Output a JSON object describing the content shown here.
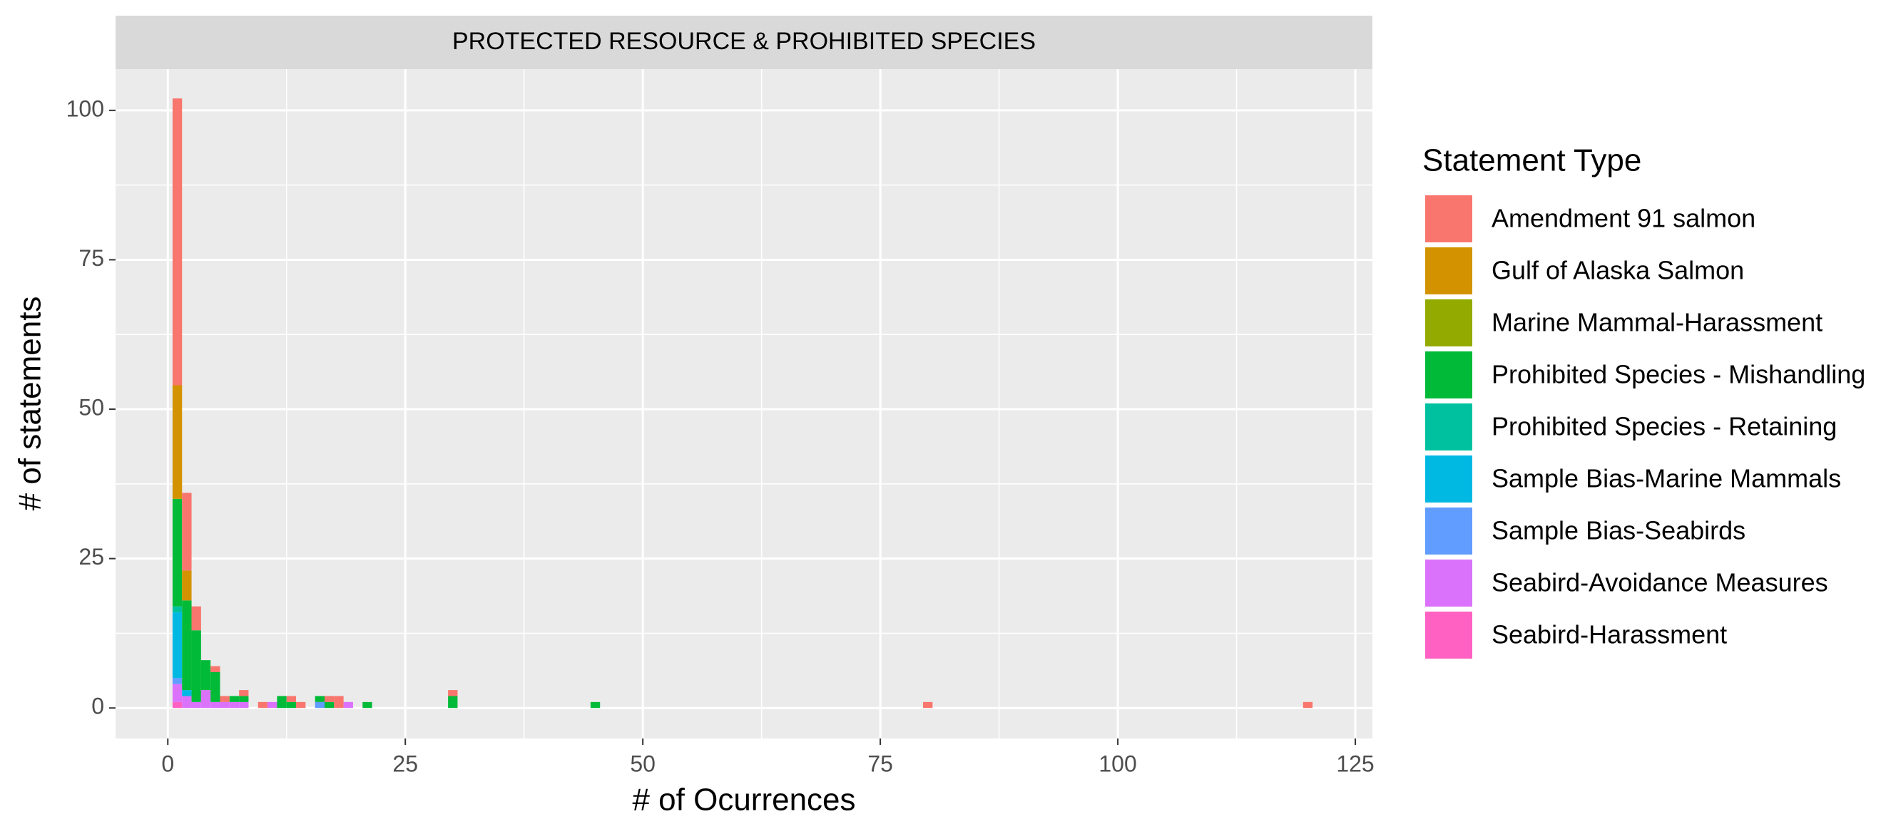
{
  "chart_data": {
    "type": "stacked_bar",
    "title": "PROTECTED RESOURCE & PROHIBITED SPECIES",
    "x_label": "# of Ocurrences",
    "y_label": "# of statements",
    "legend_title": "Statement Type",
    "legend_position": "right",
    "grid": true,
    "x": [
      1,
      2,
      3,
      4,
      5,
      6,
      7,
      8,
      10,
      11,
      12,
      13,
      14,
      16,
      17,
      18,
      19,
      21,
      30,
      45,
      80,
      120
    ],
    "xlim": [
      -5.5,
      126.8
    ],
    "xticks": [
      0,
      25,
      50,
      75,
      100,
      125
    ],
    "ylim": [
      -5.1,
      106.9
    ],
    "yticks": [
      0,
      25,
      50,
      75,
      100
    ],
    "series": [
      {
        "name": "Amendment 91 salmon",
        "color": "#F8766D",
        "values": [
          48,
          13,
          4,
          0,
          1,
          1,
          0,
          1,
          1,
          0,
          0,
          1,
          1,
          0,
          1,
          2,
          0,
          0,
          1,
          0,
          1,
          1
        ]
      },
      {
        "name": "Gulf of Alaska Salmon",
        "color": "#D39200",
        "values": [
          19,
          5,
          0,
          0,
          0,
          0,
          0,
          0,
          0,
          0,
          0,
          0,
          0,
          0,
          0,
          0,
          0,
          0,
          0,
          0,
          0,
          0
        ]
      },
      {
        "name": "Marine Mammal-Harassment",
        "color": "#93AA00",
        "values": [
          0,
          0,
          0,
          0,
          0,
          0,
          0,
          0,
          0,
          0,
          0,
          0,
          0,
          0,
          0,
          0,
          0,
          0,
          0,
          0,
          0,
          0
        ]
      },
      {
        "name": "Prohibited Species - Mishandling",
        "color": "#00BA38",
        "values": [
          18,
          15,
          12,
          5,
          5,
          0,
          1,
          1,
          0,
          0,
          2,
          1,
          0,
          1,
          1,
          0,
          0,
          1,
          2,
          1,
          0,
          0
        ]
      },
      {
        "name": "Prohibited Species - Retaining",
        "color": "#00C19F",
        "values": [
          1,
          0,
          0,
          0,
          0,
          0,
          0,
          0,
          0,
          0,
          0,
          0,
          0,
          0,
          0,
          0,
          0,
          0,
          0,
          0,
          0,
          0
        ]
      },
      {
        "name": "Sample Bias-Marine Mammals",
        "color": "#00B9E3",
        "values": [
          11,
          1,
          0,
          0,
          0,
          0,
          0,
          0,
          0,
          0,
          0,
          0,
          0,
          0,
          0,
          0,
          0,
          0,
          0,
          0,
          0,
          0
        ]
      },
      {
        "name": "Sample Bias-Seabirds",
        "color": "#619CFF",
        "values": [
          1,
          0,
          0,
          0,
          0,
          0,
          0,
          0,
          0,
          0,
          0,
          0,
          0,
          1,
          0,
          0,
          0,
          0,
          0,
          0,
          0,
          0
        ]
      },
      {
        "name": "Seabird-Avoidance Measures",
        "color": "#DB72FB",
        "values": [
          3,
          2,
          1,
          3,
          1,
          1,
          1,
          1,
          0,
          1,
          0,
          0,
          0,
          0,
          0,
          0,
          1,
          0,
          0,
          0,
          0,
          0
        ]
      },
      {
        "name": "Seabird-Harassment",
        "color": "#FF61C3",
        "values": [
          1,
          0,
          0,
          0,
          0,
          0,
          0,
          0,
          0,
          0,
          0,
          0,
          0,
          0,
          0,
          0,
          0,
          0,
          0,
          0,
          0,
          0
        ]
      }
    ]
  }
}
